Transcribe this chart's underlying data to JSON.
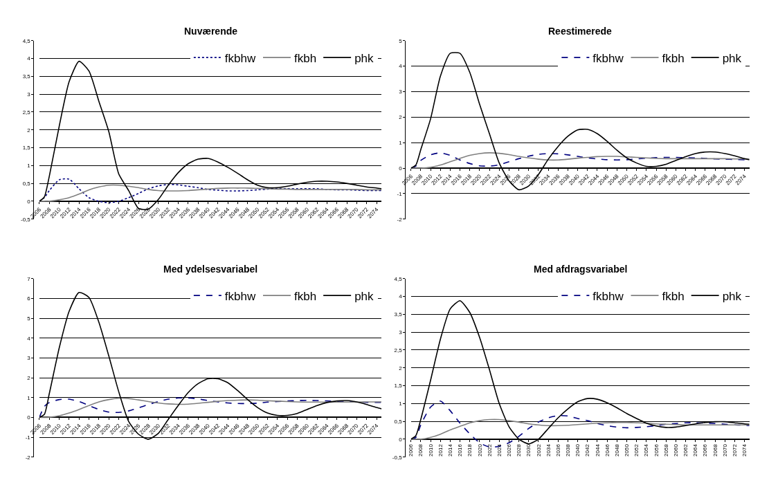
{
  "chart_data": [
    {
      "type": "line",
      "title": "Nuværende",
      "x": [
        2006,
        2007,
        2008,
        2010,
        2012,
        2014,
        2016,
        2018,
        2020,
        2022,
        2024,
        2026,
        2028,
        2030,
        2032,
        2034,
        2036,
        2038,
        2040,
        2042,
        2044,
        2046,
        2048,
        2050,
        2052,
        2054,
        2056,
        2058,
        2060,
        2062,
        2064,
        2066,
        2068,
        2070,
        2072,
        2074,
        2075
      ],
      "xlim": [
        2006,
        2075
      ],
      "xticks": [
        2006,
        2008,
        2010,
        2012,
        2014,
        2016,
        2018,
        2020,
        2022,
        2024,
        2026,
        2028,
        2030,
        2032,
        2034,
        2036,
        2038,
        2040,
        2042,
        2044,
        2046,
        2048,
        2050,
        2052,
        2054,
        2056,
        2058,
        2060,
        2062,
        2064,
        2066,
        2068,
        2070,
        2072,
        2074
      ],
      "ylim": [
        -0.5,
        4.5
      ],
      "yticks": [
        {
          "value": -0.5,
          "label": "-0,5"
        },
        0,
        {
          "value": 0.5,
          "label": "0,5"
        },
        1,
        {
          "value": 1.5,
          "label": "1,5"
        },
        2,
        {
          "value": 2.5,
          "label": "2,5"
        },
        3,
        {
          "value": 3.5,
          "label": "3,5"
        },
        4,
        {
          "value": 4.5,
          "label": "4,5"
        }
      ],
      "grid": "y",
      "legend": "top right",
      "marker": "none",
      "series": [
        {
          "name": "fkbhw",
          "color": "#000080",
          "line_style": "dotted",
          "values": [
            0,
            0.1,
            0.3,
            0.6,
            0.62,
            0.35,
            0.1,
            0.0,
            -0.04,
            0.0,
            0.1,
            0.22,
            0.35,
            0.43,
            0.47,
            0.46,
            0.42,
            0.38,
            0.33,
            0.31,
            0.29,
            0.29,
            0.3,
            0.32,
            0.34,
            0.35,
            0.35,
            0.35,
            0.35,
            0.35,
            0.33,
            0.32,
            0.32,
            0.31,
            0.3,
            0.3,
            0.3
          ]
        },
        {
          "name": "fkbh",
          "color": "#808080",
          "line_style": "solid",
          "values": [
            0,
            0,
            0,
            0.04,
            0.1,
            0.2,
            0.32,
            0.4,
            0.45,
            0.45,
            0.42,
            0.38,
            0.33,
            0.3,
            0.29,
            0.29,
            0.3,
            0.32,
            0.34,
            0.36,
            0.37,
            0.37,
            0.37,
            0.36,
            0.35,
            0.34,
            0.34,
            0.33,
            0.33,
            0.33,
            0.33,
            0.33,
            0.33,
            0.33,
            0.32,
            0.32,
            0.32
          ]
        },
        {
          "name": "phk",
          "color": "#000000",
          "line_style": "solid",
          "values": [
            0,
            0.12,
            0.7,
            2.1,
            3.35,
            3.92,
            3.65,
            2.8,
            1.95,
            0.77,
            0.3,
            -0.2,
            -0.22,
            0.05,
            0.45,
            0.8,
            1.05,
            1.18,
            1.2,
            1.1,
            0.95,
            0.78,
            0.6,
            0.45,
            0.38,
            0.38,
            0.42,
            0.48,
            0.53,
            0.56,
            0.56,
            0.54,
            0.5,
            0.45,
            0.4,
            0.37,
            0.35
          ]
        }
      ]
    },
    {
      "type": "line",
      "title": "Reestimerede",
      "x": [
        2006,
        2007,
        2008,
        2010,
        2012,
        2014,
        2016,
        2018,
        2020,
        2022,
        2024,
        2026,
        2028,
        2030,
        2032,
        2034,
        2036,
        2038,
        2040,
        2042,
        2044,
        2046,
        2048,
        2050,
        2052,
        2054,
        2056,
        2058,
        2060,
        2062,
        2064,
        2066,
        2068,
        2070,
        2072,
        2074,
        2075
      ],
      "xlim": [
        2006,
        2075
      ],
      "xticks": [
        2006,
        2008,
        2010,
        2012,
        2014,
        2016,
        2018,
        2020,
        2022,
        2024,
        2026,
        2028,
        2030,
        2032,
        2034,
        2036,
        2038,
        2040,
        2042,
        2044,
        2046,
        2048,
        2050,
        2052,
        2054,
        2056,
        2058,
        2060,
        2062,
        2064,
        2066,
        2068,
        2070,
        2072,
        2074
      ],
      "ylim": [
        -2,
        5
      ],
      "yticks": [
        -2,
        -1,
        0,
        1,
        2,
        3,
        4,
        5
      ],
      "grid": "y",
      "legend": "top right",
      "marker": "none",
      "series": [
        {
          "name": "fkbhw",
          "color": "#000080",
          "line_style": "dashed",
          "values": [
            0,
            0.08,
            0.3,
            0.52,
            0.6,
            0.5,
            0.32,
            0.18,
            0.09,
            0.08,
            0.13,
            0.25,
            0.37,
            0.47,
            0.54,
            0.57,
            0.56,
            0.52,
            0.46,
            0.4,
            0.36,
            0.33,
            0.32,
            0.33,
            0.36,
            0.39,
            0.41,
            0.42,
            0.42,
            0.41,
            0.4,
            0.38,
            0.36,
            0.35,
            0.34,
            0.33,
            0.33
          ]
        },
        {
          "name": "fkbh",
          "color": "#808080",
          "line_style": "solid",
          "values": [
            0,
            0,
            0,
            0.03,
            0.12,
            0.25,
            0.38,
            0.5,
            0.57,
            0.6,
            0.58,
            0.53,
            0.46,
            0.4,
            0.35,
            0.32,
            0.32,
            0.35,
            0.39,
            0.42,
            0.45,
            0.46,
            0.46,
            0.44,
            0.42,
            0.4,
            0.38,
            0.37,
            0.37,
            0.37,
            0.37,
            0.37,
            0.37,
            0.37,
            0.36,
            0.36,
            0.35
          ]
        },
        {
          "name": "phk",
          "color": "#000000",
          "line_style": "solid",
          "values": [
            0,
            0.12,
            0.72,
            1.93,
            3.6,
            4.5,
            4.5,
            3.75,
            2.5,
            1.35,
            0.2,
            -0.5,
            -0.85,
            -0.7,
            -0.25,
            0.35,
            0.85,
            1.25,
            1.5,
            1.52,
            1.35,
            1.05,
            0.7,
            0.4,
            0.2,
            0.07,
            0.07,
            0.15,
            0.3,
            0.45,
            0.57,
            0.63,
            0.63,
            0.57,
            0.48,
            0.37,
            0.33
          ]
        }
      ]
    },
    {
      "type": "line",
      "title": "Med ydelsesvariabel",
      "x": [
        2006,
        2007,
        2008,
        2010,
        2012,
        2014,
        2016,
        2018,
        2020,
        2022,
        2024,
        2026,
        2028,
        2030,
        2032,
        2034,
        2036,
        2038,
        2040,
        2042,
        2044,
        2046,
        2048,
        2050,
        2052,
        2054,
        2056,
        2058,
        2060,
        2062,
        2064,
        2066,
        2068,
        2070,
        2072,
        2074,
        2075
      ],
      "xlim": [
        2006,
        2075
      ],
      "xticks": [
        2006,
        2008,
        2010,
        2012,
        2014,
        2016,
        2018,
        2020,
        2022,
        2024,
        2026,
        2028,
        2030,
        2032,
        2034,
        2036,
        2038,
        2040,
        2042,
        2044,
        2046,
        2048,
        2050,
        2052,
        2054,
        2056,
        2058,
        2060,
        2062,
        2064,
        2066,
        2068,
        2070,
        2072,
        2074
      ],
      "ylim": [
        -2,
        7
      ],
      "yticks": [
        -2,
        -1,
        0,
        1,
        2,
        3,
        4,
        5,
        6,
        7
      ],
      "grid": "y",
      "legend": "top right",
      "marker": "none",
      "series": [
        {
          "name": "fkbhw",
          "color": "#000080",
          "line_style": "dashed",
          "values": [
            0,
            0.55,
            0.75,
            0.9,
            0.92,
            0.8,
            0.6,
            0.4,
            0.27,
            0.25,
            0.33,
            0.48,
            0.65,
            0.8,
            0.92,
            0.98,
            0.98,
            0.93,
            0.85,
            0.78,
            0.73,
            0.7,
            0.7,
            0.72,
            0.77,
            0.8,
            0.83,
            0.85,
            0.86,
            0.85,
            0.83,
            0.81,
            0.79,
            0.77,
            0.76,
            0.76,
            0.76
          ]
        },
        {
          "name": "fkbh",
          "color": "#808080",
          "line_style": "solid",
          "values": [
            0,
            0,
            0.01,
            0.08,
            0.22,
            0.4,
            0.6,
            0.78,
            0.9,
            0.97,
            0.95,
            0.88,
            0.8,
            0.73,
            0.68,
            0.66,
            0.67,
            0.71,
            0.76,
            0.81,
            0.85,
            0.87,
            0.88,
            0.87,
            0.84,
            0.82,
            0.8,
            0.78,
            0.77,
            0.77,
            0.77,
            0.77,
            0.77,
            0.77,
            0.78,
            0.78,
            0.78
          ]
        },
        {
          "name": "phk",
          "color": "#000000",
          "line_style": "solid",
          "values": [
            0,
            0.15,
            1.2,
            3.5,
            5.35,
            6.3,
            6.05,
            4.8,
            3.1,
            1.3,
            -0.2,
            -0.85,
            -1.1,
            -0.8,
            -0.1,
            0.6,
            1.25,
            1.7,
            1.95,
            1.95,
            1.75,
            1.35,
            0.9,
            0.5,
            0.22,
            0.1,
            0.1,
            0.2,
            0.4,
            0.6,
            0.75,
            0.83,
            0.85,
            0.78,
            0.65,
            0.5,
            0.43
          ]
        }
      ]
    },
    {
      "type": "line",
      "title": "Med afdragsvariabel",
      "x": [
        2006,
        2007,
        2008,
        2010,
        2012,
        2014,
        2016,
        2018,
        2020,
        2022,
        2024,
        2026,
        2028,
        2030,
        2032,
        2034,
        2036,
        2038,
        2040,
        2042,
        2044,
        2046,
        2048,
        2050,
        2052,
        2054,
        2056,
        2058,
        2060,
        2062,
        2064,
        2066,
        2068,
        2070,
        2072,
        2074,
        2075
      ],
      "xlim": [
        2006,
        2075
      ],
      "xticks": [
        2006,
        2008,
        2010,
        2012,
        2014,
        2016,
        2018,
        2020,
        2022,
        2024,
        2026,
        2028,
        2030,
        2032,
        2034,
        2036,
        2038,
        2040,
        2042,
        2044,
        2046,
        2048,
        2050,
        2052,
        2054,
        2056,
        2058,
        2060,
        2062,
        2064,
        2066,
        2068,
        2070,
        2072,
        2074
      ],
      "ylim": [
        -0.5,
        4.5
      ],
      "yticks": [
        {
          "value": -0.5,
          "label": "-0,5"
        },
        0,
        {
          "value": 0.5,
          "label": "0,5"
        },
        1,
        {
          "value": 1.5,
          "label": "1,5"
        },
        2,
        {
          "value": 2.5,
          "label": "2,5"
        },
        3,
        {
          "value": 3.5,
          "label": "3,5"
        },
        4,
        {
          "value": 4.5,
          "label": "4,5"
        }
      ],
      "grid": "y",
      "legend": "top right",
      "marker": "none",
      "series": [
        {
          "name": "fkbhw",
          "color": "#000080",
          "line_style": "dashed",
          "values": [
            0,
            0.05,
            0.4,
            0.9,
            1.07,
            0.8,
            0.45,
            0.15,
            -0.1,
            -0.22,
            -0.2,
            -0.1,
            0.08,
            0.3,
            0.48,
            0.6,
            0.66,
            0.65,
            0.58,
            0.52,
            0.44,
            0.38,
            0.34,
            0.32,
            0.33,
            0.35,
            0.38,
            0.42,
            0.44,
            0.46,
            0.46,
            0.45,
            0.44,
            0.42,
            0.4,
            0.39,
            0.38
          ]
        },
        {
          "name": "fkbh",
          "color": "#808080",
          "line_style": "solid",
          "values": [
            0,
            0,
            0,
            0.05,
            0.14,
            0.26,
            0.36,
            0.46,
            0.52,
            0.55,
            0.55,
            0.52,
            0.48,
            0.43,
            0.4,
            0.38,
            0.38,
            0.39,
            0.41,
            0.43,
            0.45,
            0.46,
            0.47,
            0.47,
            0.46,
            0.45,
            0.43,
            0.42,
            0.41,
            0.4,
            0.4,
            0.4,
            0.4,
            0.4,
            0.4,
            0.4,
            0.4
          ]
        },
        {
          "name": "phk",
          "color": "#000000",
          "line_style": "solid",
          "values": [
            0,
            0.1,
            0.55,
            1.65,
            2.8,
            3.65,
            3.88,
            3.55,
            2.85,
            1.95,
            1.0,
            0.35,
            0.0,
            -0.13,
            0.0,
            0.3,
            0.6,
            0.85,
            1.05,
            1.14,
            1.12,
            1.02,
            0.88,
            0.72,
            0.58,
            0.45,
            0.37,
            0.33,
            0.34,
            0.38,
            0.43,
            0.47,
            0.49,
            0.49,
            0.46,
            0.43,
            0.42
          ]
        }
      ]
    }
  ]
}
